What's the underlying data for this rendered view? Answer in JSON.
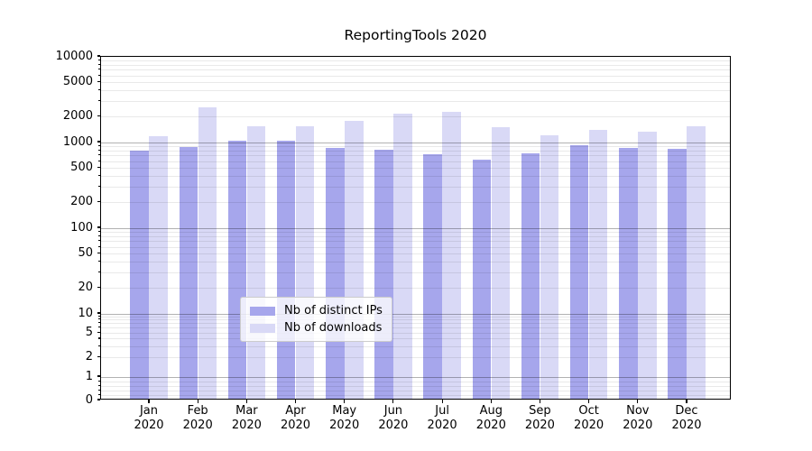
{
  "chart": {
    "title": "ReportingTools 2020",
    "legend": {
      "items": [
        {
          "label": "Nb of distinct IPs",
          "color": "#a6a6ec"
        },
        {
          "label": "Nb of downloads",
          "color": "#d9d9f6"
        }
      ]
    }
  },
  "chart_data": {
    "type": "bar",
    "title": "ReportingTools 2020",
    "categories": [
      "Jan 2020",
      "Feb 2020",
      "Mar 2020",
      "Apr 2020",
      "May 2020",
      "Jun 2020",
      "Jul 2020",
      "Aug 2020",
      "Sep 2020",
      "Oct 2020",
      "Nov 2020",
      "Dec 2020"
    ],
    "series": [
      {
        "name": "Nb of distinct IPs",
        "color": "#a6a6ec",
        "values": [
          770,
          840,
          990,
          990,
          830,
          790,
          700,
          600,
          720,
          890,
          830,
          810
        ]
      },
      {
        "name": "Nb of downloads",
        "color": "#d9d9f6",
        "values": [
          1120,
          2460,
          1470,
          1480,
          1700,
          2080,
          2170,
          1450,
          1160,
          1330,
          1280,
          1480
        ]
      }
    ],
    "yscale": "symlog",
    "ylim": [
      0,
      10000
    ],
    "yticks": [
      0,
      1,
      2,
      5,
      10,
      20,
      50,
      100,
      200,
      500,
      1000,
      2000,
      5000,
      10000
    ],
    "grid": true,
    "legend_position": "lower center"
  }
}
